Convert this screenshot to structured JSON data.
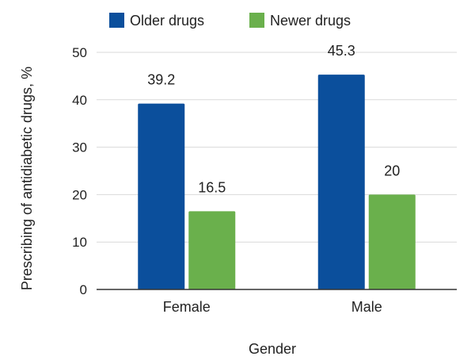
{
  "chart_data": {
    "type": "bar",
    "title": "",
    "xlabel": "Gender",
    "ylabel": "Prescribing of antidiabetic drugs, %",
    "categories": [
      "Female",
      "Male"
    ],
    "series": [
      {
        "name": "Older drugs",
        "values": [
          39.2,
          45.3
        ],
        "color": "#0b4f9c"
      },
      {
        "name": "Newer drugs",
        "values": [
          16.5,
          20
        ],
        "color": "#6ab04c"
      }
    ],
    "data_labels": [
      [
        "39.2",
        "45.3"
      ],
      [
        "16.5",
        "20"
      ]
    ],
    "ylim": [
      0,
      50
    ],
    "yticks": [
      0,
      10,
      20,
      30,
      40,
      50
    ],
    "grid": true,
    "legend_position": "top"
  }
}
